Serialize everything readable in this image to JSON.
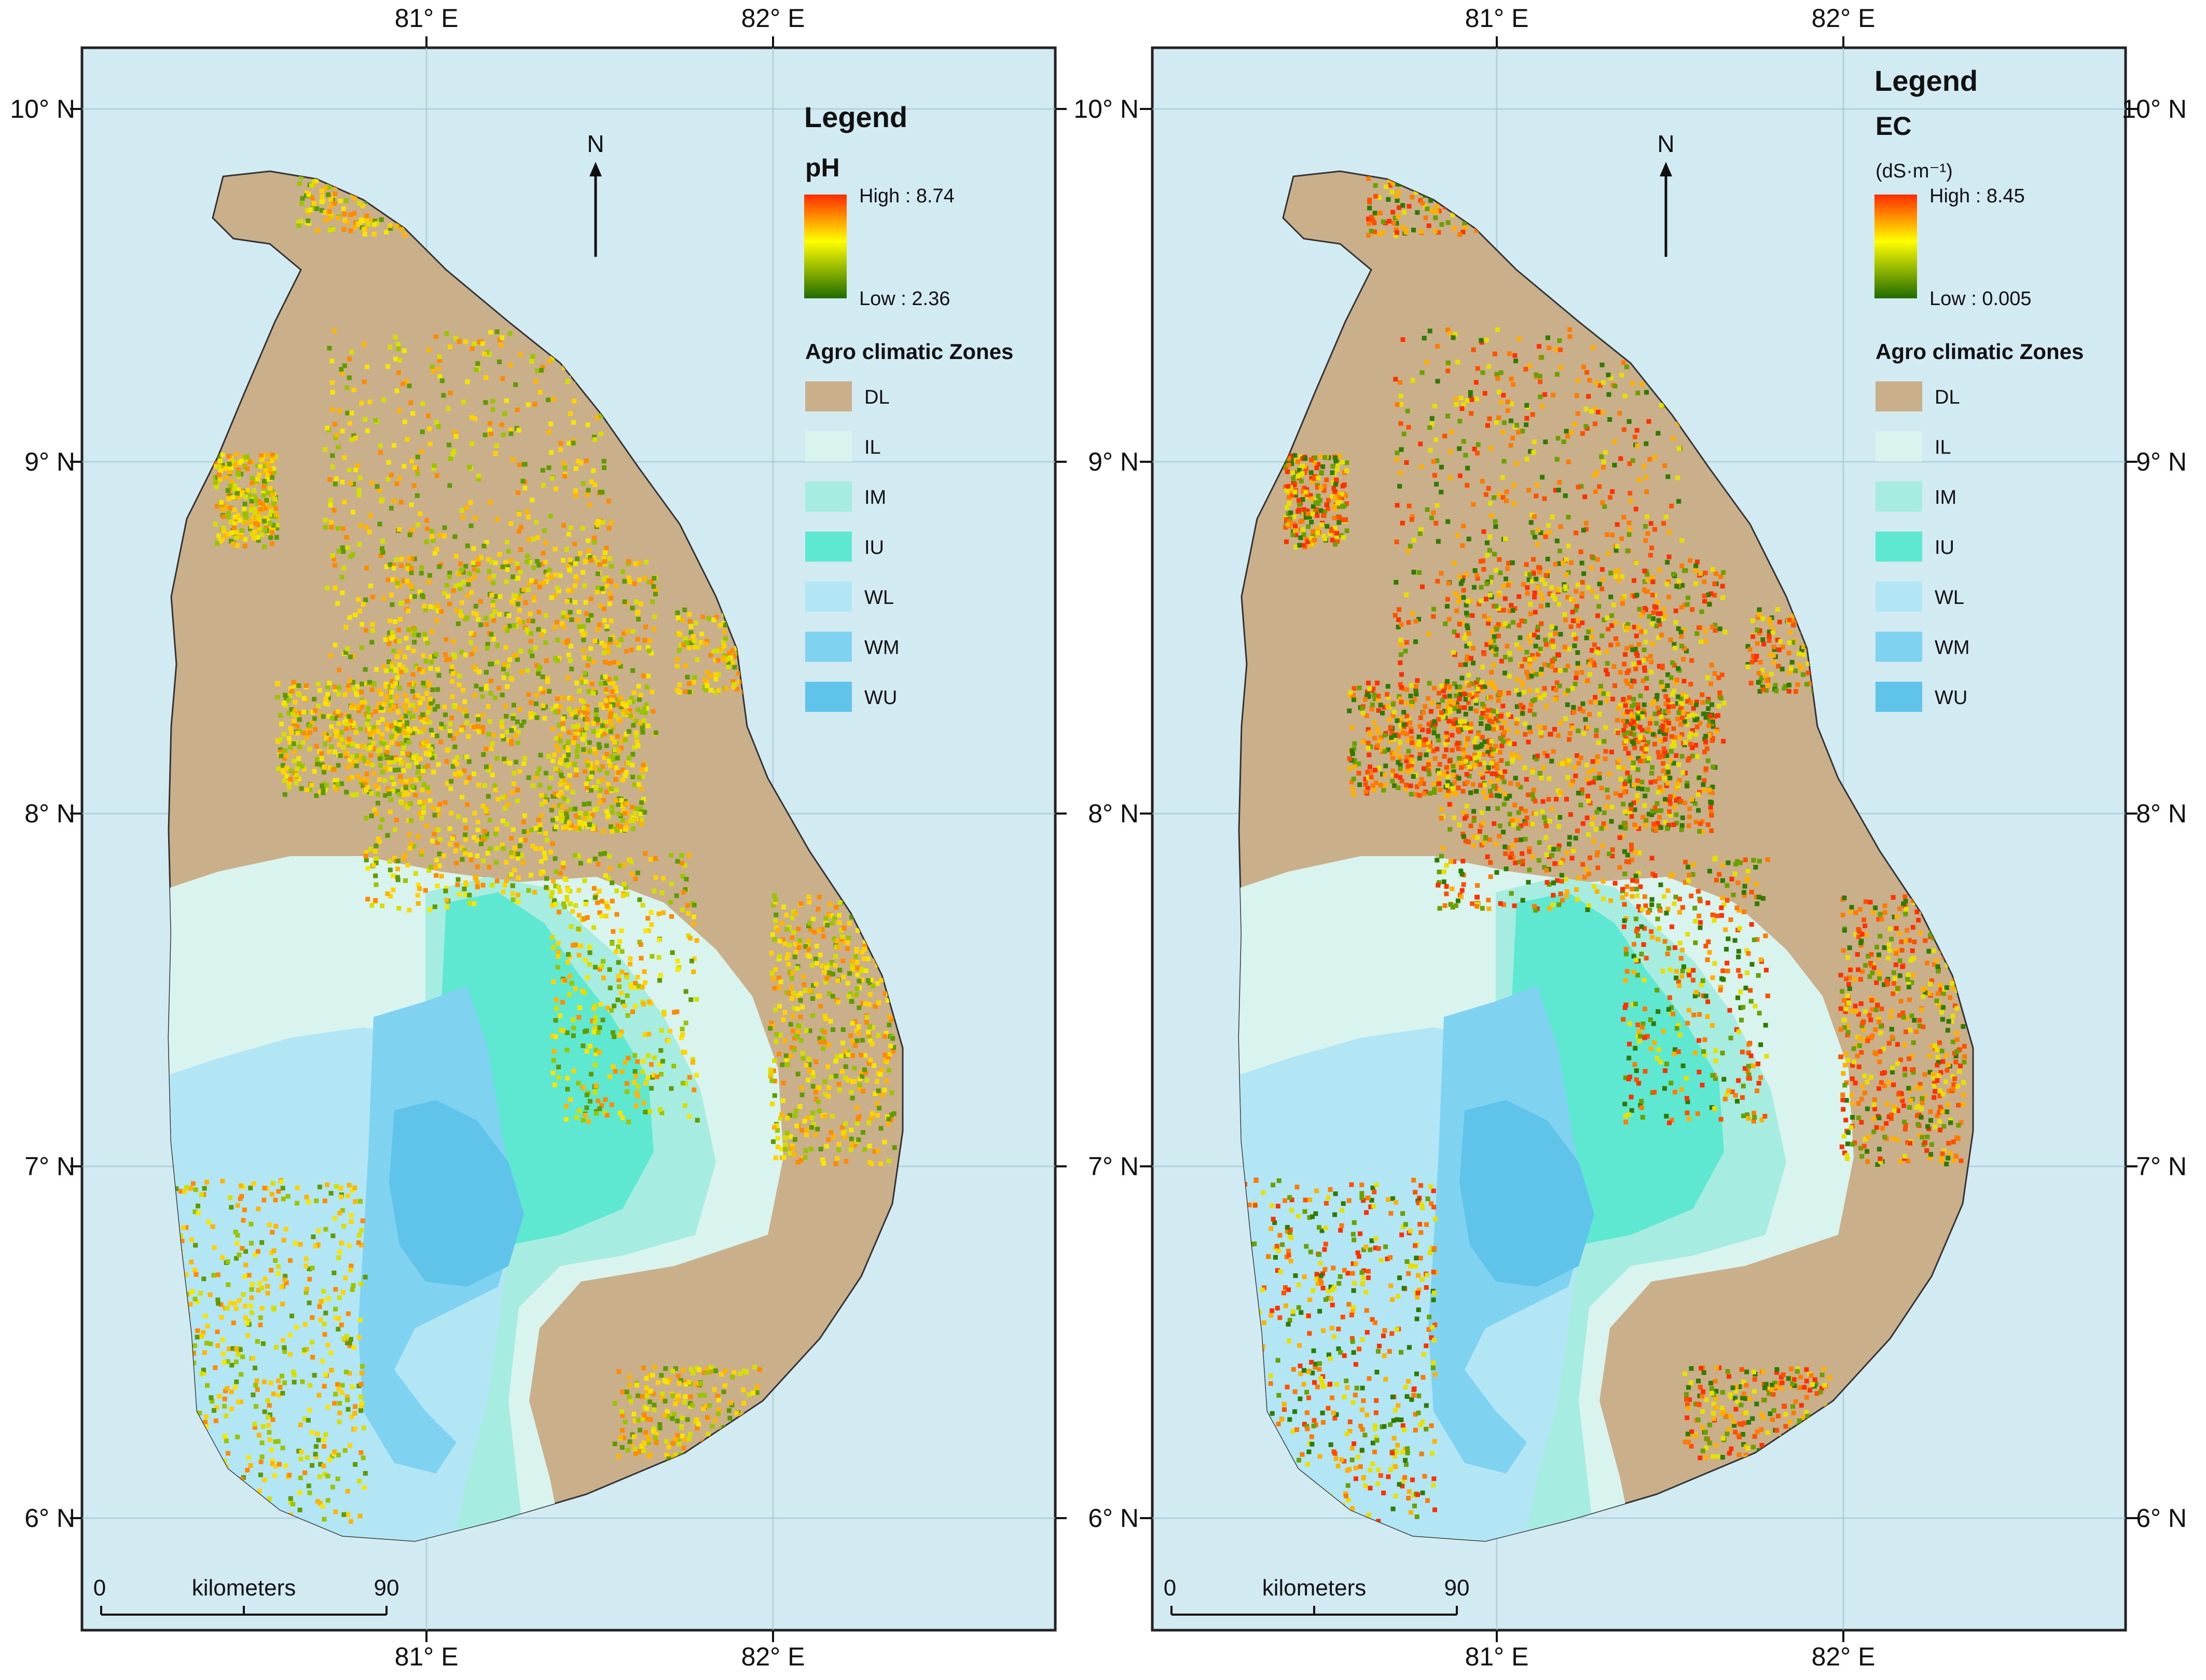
{
  "colors": {
    "sea": "#d2ebf2",
    "DL": "#c9b08a",
    "IL": "#d9f4ef",
    "IM": "#a6ece0",
    "IU": "#5fe8d1",
    "WL": "#b3e6f5",
    "WM": "#7fd3f0",
    "WU": "#60c3ea",
    "ramp_high": "#ff2a00",
    "ramp_mid": "#ffff00",
    "ramp_low": "#1f6b00"
  },
  "axes": {
    "lon_ticks": [
      "81° E",
      "82° E"
    ],
    "lat_ticks": [
      "10° N",
      "9° N",
      "8° N",
      "7° N",
      "6° N"
    ]
  },
  "north_arrow": "N",
  "scale_bar": {
    "start": "0",
    "unit": "kilometers",
    "end": "90"
  },
  "legend_zones_title": "Agro climatic Zones",
  "zones": [
    {
      "code": "DL",
      "color": "#c9b08a"
    },
    {
      "code": "IL",
      "color": "#d9f4ef"
    },
    {
      "code": "IM",
      "color": "#a6ece0"
    },
    {
      "code": "IU",
      "color": "#5fe8d1"
    },
    {
      "code": "WL",
      "color": "#b3e6f5"
    },
    {
      "code": "WM",
      "color": "#7fd3f0"
    },
    {
      "code": "WU",
      "color": "#60c3ea"
    }
  ],
  "panels": [
    {
      "legend_title": "Legend",
      "variable": "pH",
      "unit": "",
      "high": "High : 8.74",
      "low": "Low : 2.36"
    },
    {
      "legend_title": "Legend",
      "variable": "EC",
      "unit": "(dS·m⁻¹)",
      "high": "High : 8.45",
      "low": "Low : 0.005"
    }
  ]
}
